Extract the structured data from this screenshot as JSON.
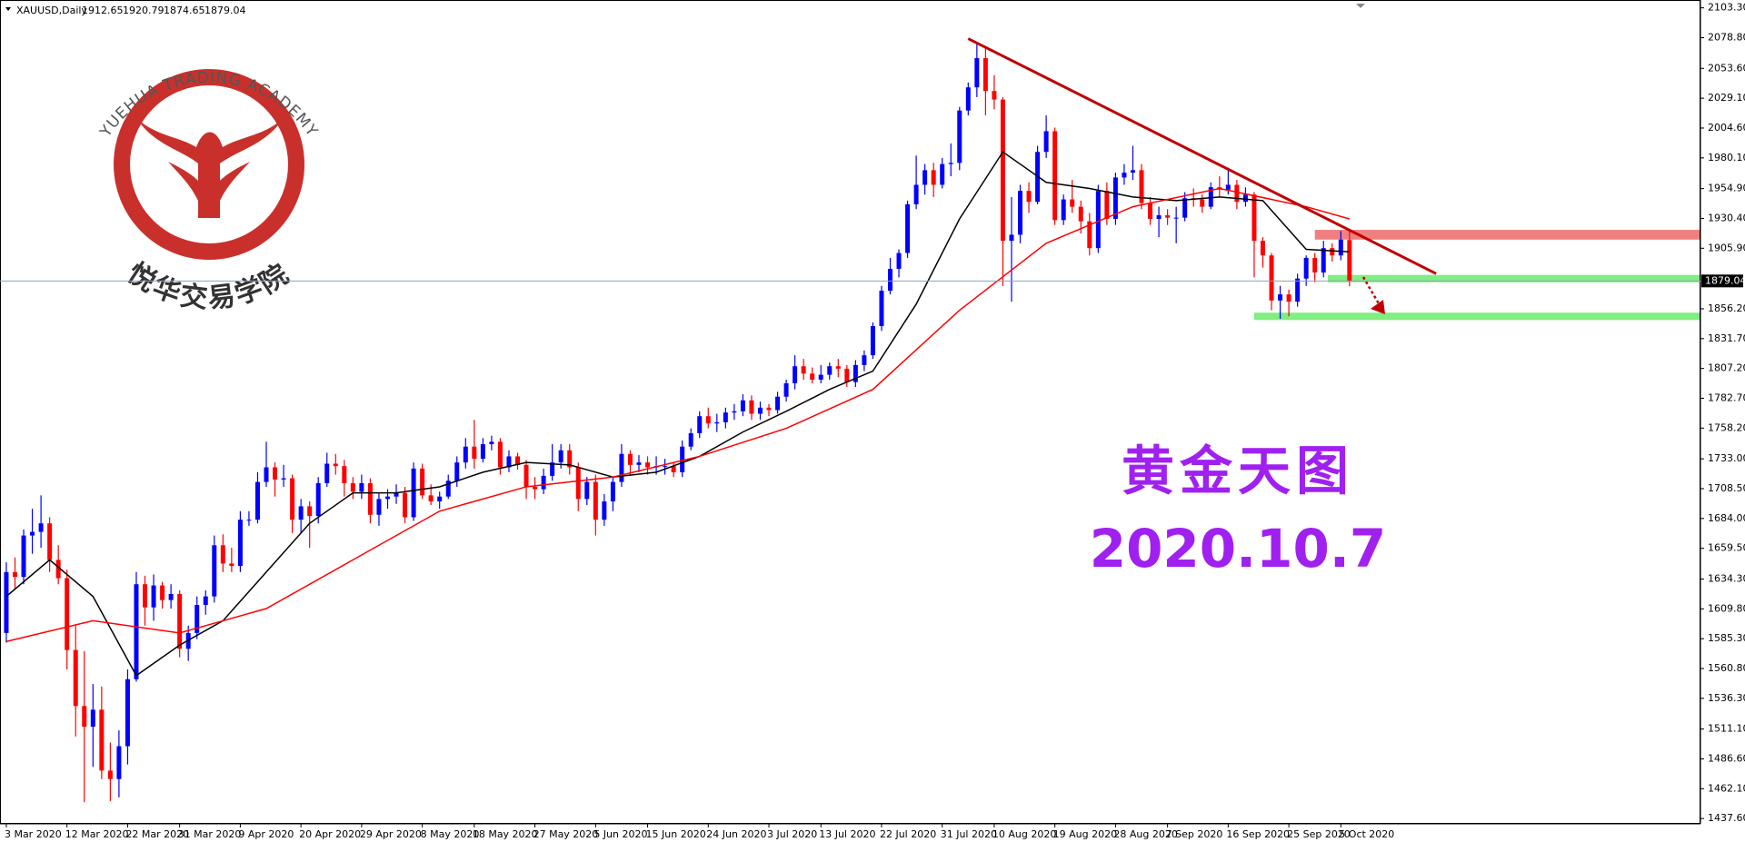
{
  "chart_data": {
    "type": "candlestick",
    "title": "XAUUSD,Daily",
    "logo_text": "YUEHUA TRADING ACADEMY",
    "logo_subtext": "悦华交易学院",
    "annotation": "黄金天图",
    "date_text": "2020.10.7",
    "up_color": "#0000ff",
    "down_color": "#ff0000",
    "xlim": [
      -0.73,
      195.5
    ],
    "ylim": [
      1434,
      2109
    ],
    "xticks": [
      {
        "value": 0,
        "label": "3 Mar 2020"
      },
      {
        "value": 7,
        "label": "12 Mar 2020"
      },
      {
        "value": 14,
        "label": "22 Mar 2020"
      },
      {
        "value": 20,
        "label": "31 Mar 2020"
      },
      {
        "value": 27,
        "label": "9 Apr 2020"
      },
      {
        "value": 34,
        "label": "20 Apr 2020"
      },
      {
        "value": 41,
        "label": "29 Apr 2020"
      },
      {
        "value": 48,
        "label": "8 May 2020"
      },
      {
        "value": 54,
        "label": "18 May 2020"
      },
      {
        "value": 61,
        "label": "27 May 2020"
      },
      {
        "value": 68,
        "label": "5 Jun 2020"
      },
      {
        "value": 74,
        "label": "15 Jun 2020"
      },
      {
        "value": 81,
        "label": "24 Jun 2020"
      },
      {
        "value": 88,
        "label": "3 Jul 2020"
      },
      {
        "value": 94,
        "label": "13 Jul 2020"
      },
      {
        "value": 101,
        "label": "22 Jul 2020"
      },
      {
        "value": 108,
        "label": "31 Jul 2020"
      },
      {
        "value": 114,
        "label": "10 Aug 2020"
      },
      {
        "value": 121,
        "label": "19 Aug 2020"
      },
      {
        "value": 128,
        "label": "28 Aug 2020"
      },
      {
        "value": 134,
        "label": "7 Sep 2020"
      },
      {
        "value": 141,
        "label": "16 Sep 2020"
      },
      {
        "value": 148,
        "label": "25 Sep 2020"
      },
      {
        "value": 154,
        "label": "5 Oct 2020"
      }
    ],
    "yticks": [
      {
        "value": 2103.3,
        "label": "2103.30"
      },
      {
        "value": 2078.8,
        "label": "2078.80"
      },
      {
        "value": 2053.6,
        "label": "2053.60"
      },
      {
        "value": 2029.1,
        "label": "2029.10"
      },
      {
        "value": 2004.6,
        "label": "2004.60"
      },
      {
        "value": 1980.1,
        "label": "1980.10"
      },
      {
        "value": 1954.9,
        "label": "1954.90"
      },
      {
        "value": 1930.4,
        "label": "1930.40"
      },
      {
        "value": 1905.9,
        "label": "1905.90"
      },
      {
        "value": 1856.2,
        "label": "1856.20"
      },
      {
        "value": 1831.7,
        "label": "1831.70"
      },
      {
        "value": 1807.2,
        "label": "1807.20"
      },
      {
        "value": 1782.7,
        "label": "1782.70"
      },
      {
        "value": 1758.2,
        "label": "1758.20"
      },
      {
        "value": 1733,
        "label": "1733.00"
      },
      {
        "value": 1708.5,
        "label": "1708.50"
      },
      {
        "value": 1684,
        "label": "1684.00"
      },
      {
        "value": 1659.5,
        "label": "1659.50"
      },
      {
        "value": 1634.3,
        "label": "1634.30"
      },
      {
        "value": 1609.8,
        "label": "1609.80"
      },
      {
        "value": 1585.3,
        "label": "1585.30"
      },
      {
        "value": 1560.8,
        "label": "1560.80"
      },
      {
        "value": 1536.3,
        "label": "1536.30"
      },
      {
        "value": 1511.1,
        "label": "1511.10"
      },
      {
        "value": 1486.6,
        "label": "1486.60"
      },
      {
        "value": 1462.1,
        "label": "1462.10"
      },
      {
        "value": 1437.6,
        "label": "1437.60"
      }
    ],
    "open": [
      1590,
      1640,
      1636,
      1670,
      1673,
      1680,
      1650,
      1635,
      1576,
      1530,
      1513,
      1527,
      1477,
      1470,
      1497,
      1552,
      1630,
      1611,
      1629,
      1617,
      1622,
      1577,
      1590,
      1613,
      1620,
      1662,
      1647,
      1645,
      1683,
      1683,
      1714,
      1726,
      1716,
      1717,
      1683,
      1694,
      1686,
      1713,
      1729,
      1727,
      1713,
      1706,
      1713,
      1687,
      1700,
      1702,
      1705,
      1685,
      1725,
      1703,
      1698,
      1702,
      1715,
      1730,
      1743,
      1733,
      1745,
      1747,
      1726,
      1735,
      1728,
      1710,
      1708,
      1719,
      1730,
      1740,
      1726,
      1700,
      1714,
      1683,
      1698,
      1714,
      1737,
      1728,
      1730,
      1726,
      1727,
      1727,
      1722,
      1743,
      1754,
      1768,
      1762,
      1763,
      1771,
      1772,
      1781,
      1770,
      1775,
      1773,
      1784,
      1795,
      1809,
      1803,
      1798,
      1802,
      1809,
      1807,
      1796,
      1810,
      1818,
      1842,
      1871,
      1889,
      1902,
      1942,
      1958,
      1970,
      1958,
      1975,
      1976,
      2019,
      2038,
      2062,
      2035,
      2028,
      1912,
      1917,
      1953,
      1944,
      1985,
      2002,
      1929,
      1946,
      1940,
      1928,
      1906,
      1953,
      1930,
      1964,
      1968,
      1970,
      1943,
      1930,
      1933,
      1931,
      1931,
      1947,
      1946,
      1940,
      1956,
      1954,
      1958,
      1944,
      1950,
      1912,
      1900,
      1863,
      1868,
      1862,
      1881,
      1898,
      1886,
      1906,
      1900,
      1912.65
    ],
    "high": [
      1648,
      1652,
      1675,
      1692,
      1703,
      1685,
      1662,
      1642,
      1596,
      1575,
      1548,
      1546,
      1500,
      1510,
      1560,
      1640,
      1637,
      1638,
      1632,
      1630,
      1625,
      1596,
      1620,
      1625,
      1670,
      1671,
      1660,
      1690,
      1690,
      1722,
      1747,
      1730,
      1728,
      1720,
      1700,
      1698,
      1718,
      1738,
      1737,
      1732,
      1718,
      1720,
      1717,
      1705,
      1708,
      1712,
      1710,
      1730,
      1729,
      1712,
      1706,
      1720,
      1735,
      1750,
      1765,
      1750,
      1752,
      1750,
      1740,
      1738,
      1732,
      1718,
      1725,
      1745,
      1745,
      1745,
      1730,
      1718,
      1720,
      1704,
      1718,
      1745,
      1740,
      1736,
      1735,
      1735,
      1733,
      1730,
      1748,
      1758,
      1772,
      1775,
      1770,
      1775,
      1778,
      1786,
      1785,
      1780,
      1778,
      1788,
      1798,
      1818,
      1815,
      1808,
      1810,
      1812,
      1815,
      1810,
      1814,
      1822,
      1845,
      1875,
      1898,
      1905,
      1945,
      1982,
      1975,
      1976,
      1980,
      1992,
      2022,
      2042,
      2075,
      2072,
      2048,
      2030,
      1948,
      1958,
      1960,
      1990,
      2015,
      2005,
      1950,
      1962,
      1945,
      1935,
      1958,
      1960,
      1968,
      1975,
      1990,
      1975,
      1948,
      1940,
      1938,
      1940,
      1952,
      1955,
      1950,
      1960,
      1965,
      1972,
      1962,
      1956,
      1952,
      1915,
      1902,
      1875,
      1872,
      1885,
      1900,
      1902,
      1912,
      1910,
      1920,
      1920.79
    ],
    "low": [
      1582,
      1626,
      1630,
      1655,
      1660,
      1640,
      1630,
      1560,
      1505,
      1451,
      1480,
      1470,
      1452,
      1455,
      1482,
      1550,
      1596,
      1600,
      1610,
      1610,
      1570,
      1567,
      1585,
      1605,
      1615,
      1640,
      1640,
      1640,
      1678,
      1680,
      1710,
      1702,
      1710,
      1672,
      1672,
      1660,
      1680,
      1710,
      1720,
      1702,
      1700,
      1700,
      1680,
      1678,
      1692,
      1696,
      1680,
      1682,
      1700,
      1695,
      1692,
      1700,
      1710,
      1725,
      1725,
      1730,
      1740,
      1720,
      1722,
      1724,
      1700,
      1700,
      1704,
      1715,
      1725,
      1720,
      1690,
      1695,
      1670,
      1678,
      1690,
      1710,
      1720,
      1722,
      1720,
      1720,
      1720,
      1718,
      1718,
      1740,
      1750,
      1758,
      1755,
      1758,
      1765,
      1768,
      1765,
      1765,
      1768,
      1770,
      1780,
      1790,
      1798,
      1795,
      1795,
      1798,
      1800,
      1792,
      1792,
      1805,
      1815,
      1838,
      1868,
      1882,
      1898,
      1938,
      1950,
      1948,
      1955,
      1965,
      1970,
      2015,
      2030,
      2015,
      2020,
      1875,
      1862,
      1910,
      1935,
      1942,
      1980,
      1925,
      1925,
      1935,
      1918,
      1900,
      1902,
      1925,
      1925,
      1958,
      1962,
      1938,
      1925,
      1915,
      1925,
      1910,
      1928,
      1940,
      1935,
      1938,
      1948,
      1950,
      1938,
      1940,
      1882,
      1890,
      1855,
      1848,
      1850,
      1858,
      1875,
      1878,
      1882,
      1895,
      1896,
      1874.65
    ],
    "close": [
      1640,
      1636,
      1670,
      1673,
      1680,
      1650,
      1635,
      1576,
      1530,
      1513,
      1527,
      1477,
      1470,
      1497,
      1552,
      1630,
      1611,
      1629,
      1617,
      1622,
      1577,
      1590,
      1613,
      1620,
      1662,
      1647,
      1645,
      1683,
      1683,
      1714,
      1726,
      1716,
      1717,
      1683,
      1694,
      1686,
      1713,
      1729,
      1727,
      1713,
      1706,
      1713,
      1687,
      1700,
      1702,
      1705,
      1685,
      1725,
      1703,
      1698,
      1702,
      1715,
      1730,
      1743,
      1733,
      1745,
      1747,
      1726,
      1735,
      1728,
      1710,
      1708,
      1719,
      1730,
      1740,
      1726,
      1700,
      1714,
      1683,
      1698,
      1714,
      1737,
      1728,
      1730,
      1726,
      1727,
      1727,
      1722,
      1743,
      1754,
      1768,
      1762,
      1763,
      1771,
      1772,
      1781,
      1770,
      1775,
      1773,
      1784,
      1795,
      1809,
      1803,
      1798,
      1802,
      1809,
      1807,
      1796,
      1810,
      1818,
      1842,
      1871,
      1889,
      1902,
      1942,
      1958,
      1970,
      1958,
      1975,
      1976,
      2019,
      2038,
      2062,
      2035,
      2028,
      1912,
      1917,
      1953,
      1944,
      1985,
      2002,
      1929,
      1946,
      1940,
      1928,
      1906,
      1953,
      1930,
      1964,
      1968,
      1970,
      1943,
      1930,
      1933,
      1931,
      1931,
      1947,
      1946,
      1940,
      1956,
      1954,
      1958,
      1944,
      1950,
      1912,
      1900,
      1863,
      1868,
      1862,
      1881,
      1898,
      1886,
      1906,
      1900,
      1913,
      1879.04
    ],
    "moving_averages": [
      {
        "color": "#000000",
        "x": [
          0,
          5,
          10,
          15,
          20,
          25,
          30,
          35,
          40,
          45,
          50,
          55,
          60,
          65,
          70,
          75,
          80,
          85,
          90,
          95,
          100,
          105,
          110,
          115,
          120,
          125,
          130,
          135,
          140,
          145,
          150,
          155
        ],
        "values": [
          1620,
          1650,
          1620,
          1555,
          1580,
          1600,
          1640,
          1680,
          1705,
          1705,
          1710,
          1722,
          1730,
          1728,
          1718,
          1722,
          1735,
          1755,
          1772,
          1790,
          1805,
          1860,
          1930,
          1985,
          1960,
          1955,
          1948,
          1945,
          1948,
          1945,
          1905,
          1903
        ]
      },
      {
        "color": "#ff0000",
        "x": [
          0,
          10,
          20,
          30,
          40,
          50,
          60,
          70,
          80,
          90,
          100,
          110,
          120,
          130,
          140,
          150,
          155
        ],
        "values": [
          1583,
          1600,
          1590,
          1610,
          1650,
          1690,
          1710,
          1718,
          1735,
          1758,
          1790,
          1855,
          1910,
          1940,
          1955,
          1940,
          1930
        ]
      }
    ],
    "trendline": {
      "color": "#c00000",
      "x": [
        111,
        165
      ],
      "y": [
        2078,
        1885
      ]
    },
    "zones": [
      {
        "color": "#f08080",
        "x0": 151,
        "low": 1913,
        "high": 1921
      },
      {
        "color": "#80ee80",
        "x0": 152.5,
        "low": 1878,
        "high": 1884
      },
      {
        "color": "#80ee80",
        "x0": 144,
        "low": 1847,
        "high": 1853
      }
    ]
  }
}
